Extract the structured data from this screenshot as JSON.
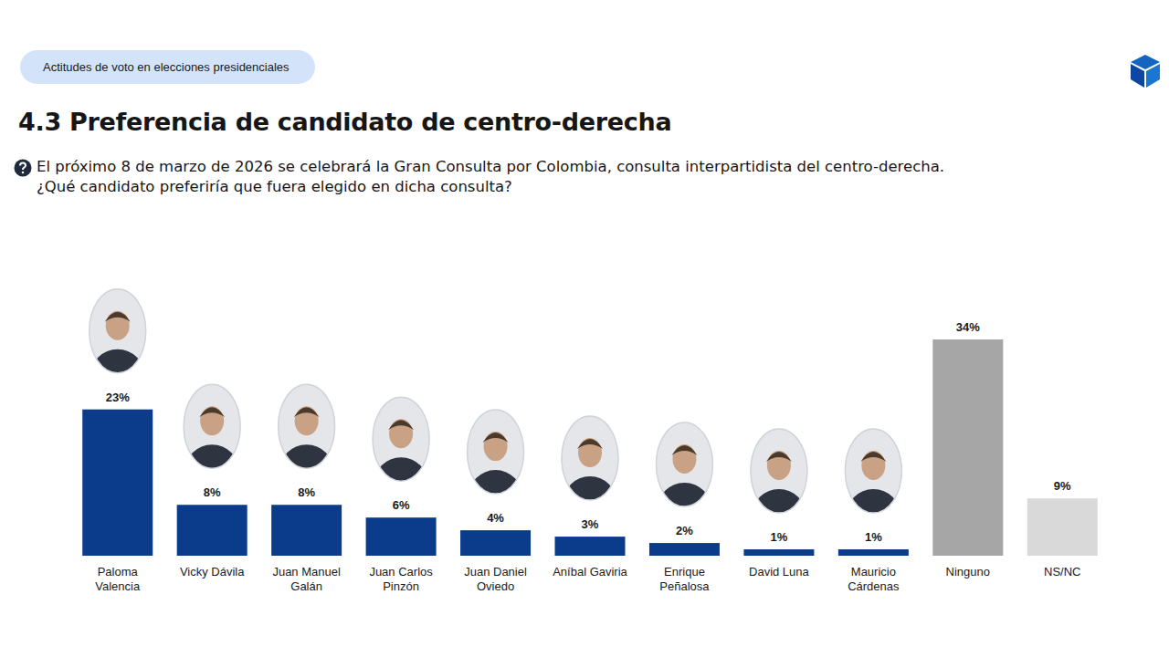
{
  "chart_data": {
    "type": "bar",
    "annotations": [
      "Actitudes de voto en elecciones presidenciales"
    ],
    "title": "4.3 Preferencia de candidato de centro-derecha",
    "subtitle": "El próximo 8 de marzo de 2026 se celebrará la Gran Consulta por Colombia, consulta interpartidista del centro-derecha.\n¿Qué candidato preferiría que fuera elegido en dicha consulta?",
    "categories": [
      "Paloma Valencia",
      "Vicky Dávila",
      "Juan Manuel Galán",
      "Juan Carlos Pinzón",
      "Juan Daniel Oviedo",
      "Aníbal Gaviria",
      "Enrique Peñalosa",
      "David Luna",
      "Mauricio Cárdenas",
      "Ninguno",
      "NS/NC"
    ],
    "values": [
      23,
      8,
      8,
      6,
      4,
      3,
      2,
      1,
      1,
      34,
      9
    ],
    "value_labels": [
      "23%",
      "8%",
      "8%",
      "6%",
      "4%",
      "3%",
      "2%",
      "1%",
      "1%",
      "34%",
      "9%"
    ],
    "colors": [
      "#0b3c8c",
      "#0b3c8c",
      "#0b3c8c",
      "#0b3c8c",
      "#0b3c8c",
      "#0b3c8c",
      "#0b3c8c",
      "#0b3c8c",
      "#0b3c8c",
      "#a6a6a6",
      "#d9d9d9"
    ],
    "ylim": [
      0,
      34
    ],
    "data_labels": true,
    "tick_labels": false,
    "grid": false
  }
}
